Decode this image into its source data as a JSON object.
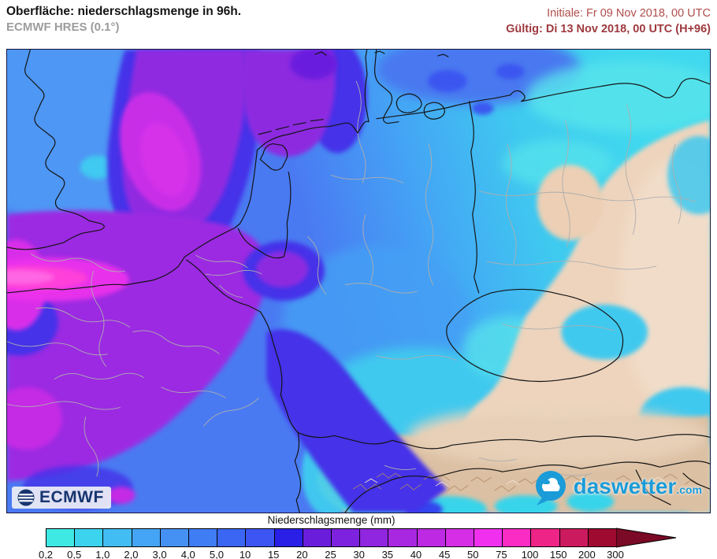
{
  "header": {
    "title": "Oberfläche: niederschlagsmenge in 96h.",
    "subtitle": "ECMWF HRES (0.1°)",
    "initial": "Initiale: Fr 09 Nov 2018, 00 UTC",
    "valid": "Gültig: Di 13 Nov 2018, 00 UTC (H+96)"
  },
  "branding": {
    "ecmwf": "ECMWF",
    "daswetter": "daswetter",
    "daswetter_tld": ".com"
  },
  "legend": {
    "title": "Niederschlagsmenge (mm)",
    "ticks": [
      "0,2",
      "0,5",
      "1,0",
      "2,0",
      "3,0",
      "4,0",
      "5,0",
      "10",
      "15",
      "20",
      "25",
      "30",
      "35",
      "40",
      "45",
      "50",
      "75",
      "100",
      "150",
      "200",
      "300"
    ],
    "colors": [
      "#3ee9e4",
      "#3cd3ee",
      "#41bdf3",
      "#44a4f5",
      "#4591f3",
      "#3f7df5",
      "#3a66f3",
      "#3d55f2",
      "#2a1fe6",
      "#6a1edc",
      "#7d22de",
      "#9026e0",
      "#a828e2",
      "#be2ae4",
      "#d62ee6",
      "#f030ee",
      "#fa2cc4",
      "#ee2486",
      "#cc1a5e",
      "#9e0a30"
    ],
    "arrow_color": "#7a0a26"
  },
  "colors": {
    "header_initial": "#b14d4b",
    "header_valid": "#9e393e",
    "subtitle_gray": "#9c9c9c",
    "brand_blue": "#1b9cd8",
    "ecmwf_navy": "#16356f"
  },
  "map_palette": {
    "sea_blue": "#4a7af2",
    "light_blue": "#44a5f5",
    "cyan": "#3fc9ef",
    "pale_cyan": "#58e5ec",
    "deep_blue": "#4531e9",
    "purple": "#8d2ae0",
    "violet_field": "#9c2ce2",
    "magenta": "#c92fe7",
    "hot_pink": "#ff3fd9",
    "tan_dry": "#eed4bd",
    "alps_brown": "#dcc0a3"
  }
}
